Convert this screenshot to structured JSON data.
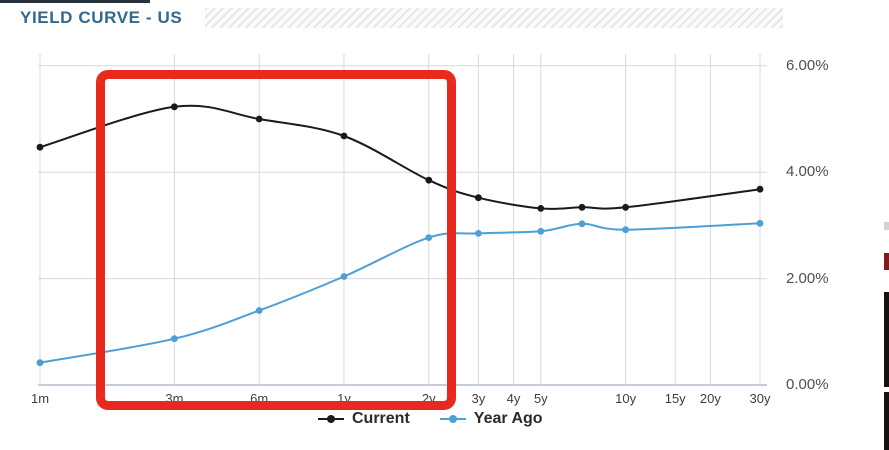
{
  "header": {
    "title": "YIELD CURVE - US"
  },
  "chart_data": {
    "type": "line",
    "title": "YIELD CURVE - US",
    "x_scale": "log",
    "grid": true,
    "legend_position": "bottom",
    "ylim": [
      0,
      6
    ],
    "x_ticks": [
      {
        "label": "1m",
        "years": 0.0833
      },
      {
        "label": "3m",
        "years": 0.25
      },
      {
        "label": "6m",
        "years": 0.5
      },
      {
        "label": "1y",
        "years": 1
      },
      {
        "label": "2y",
        "years": 2
      },
      {
        "label": "3y",
        "years": 3
      },
      {
        "label": "4y",
        "years": 4
      },
      {
        "label": "5y",
        "years": 5
      },
      {
        "label": "10y",
        "years": 10
      },
      {
        "label": "15y",
        "years": 15
      },
      {
        "label": "20y",
        "years": 20
      },
      {
        "label": "30y",
        "years": 30
      }
    ],
    "y_ticks": [
      {
        "label": "0.00%",
        "value": 0
      },
      {
        "label": "2.00%",
        "value": 2
      },
      {
        "label": "4.00%",
        "value": 4
      },
      {
        "label": "6.00%",
        "value": 6
      }
    ],
    "series": [
      {
        "name": "Current",
        "color": "#1a1a1a",
        "points": [
          {
            "maturity": "1m",
            "years": 0.0833,
            "yield_pct": 4.47
          },
          {
            "maturity": "3m",
            "years": 0.25,
            "yield_pct": 5.23
          },
          {
            "maturity": "6m",
            "years": 0.5,
            "yield_pct": 5.0
          },
          {
            "maturity": "1y",
            "years": 1,
            "yield_pct": 4.68
          },
          {
            "maturity": "2y",
            "years": 2,
            "yield_pct": 3.85
          },
          {
            "maturity": "3y",
            "years": 3,
            "yield_pct": 3.52
          },
          {
            "maturity": "5y",
            "years": 5,
            "yield_pct": 3.32
          },
          {
            "maturity": "7y",
            "years": 7,
            "yield_pct": 3.34
          },
          {
            "maturity": "10y",
            "years": 10,
            "yield_pct": 3.34
          },
          {
            "maturity": "30y",
            "years": 30,
            "yield_pct": 3.68
          }
        ]
      },
      {
        "name": "Year Ago",
        "color": "#4d9fd6",
        "points": [
          {
            "maturity": "1m",
            "years": 0.0833,
            "yield_pct": 0.42
          },
          {
            "maturity": "3m",
            "years": 0.25,
            "yield_pct": 0.87
          },
          {
            "maturity": "6m",
            "years": 0.5,
            "yield_pct": 1.4
          },
          {
            "maturity": "1y",
            "years": 1,
            "yield_pct": 2.04
          },
          {
            "maturity": "2y",
            "years": 2,
            "yield_pct": 2.77
          },
          {
            "maturity": "3y",
            "years": 3,
            "yield_pct": 2.85
          },
          {
            "maturity": "5y",
            "years": 5,
            "yield_pct": 2.89
          },
          {
            "maturity": "7y",
            "years": 7,
            "yield_pct": 3.03
          },
          {
            "maturity": "10y",
            "years": 10,
            "yield_pct": 2.92
          },
          {
            "maturity": "30y",
            "years": 30,
            "yield_pct": 3.04
          }
        ]
      }
    ]
  },
  "annotation": {
    "shape": "rectangle",
    "color": "#e8291e",
    "covers_ticks": [
      "3m",
      "6m",
      "1y",
      "2y"
    ]
  },
  "colors": {
    "title": "#33688f",
    "gridline": "#d8d8d8",
    "axis_line": "#c3ccd6",
    "current_line": "#1a1a1a",
    "year_ago_line": "#4d9fd6",
    "annotation_red": "#e8291e"
  }
}
